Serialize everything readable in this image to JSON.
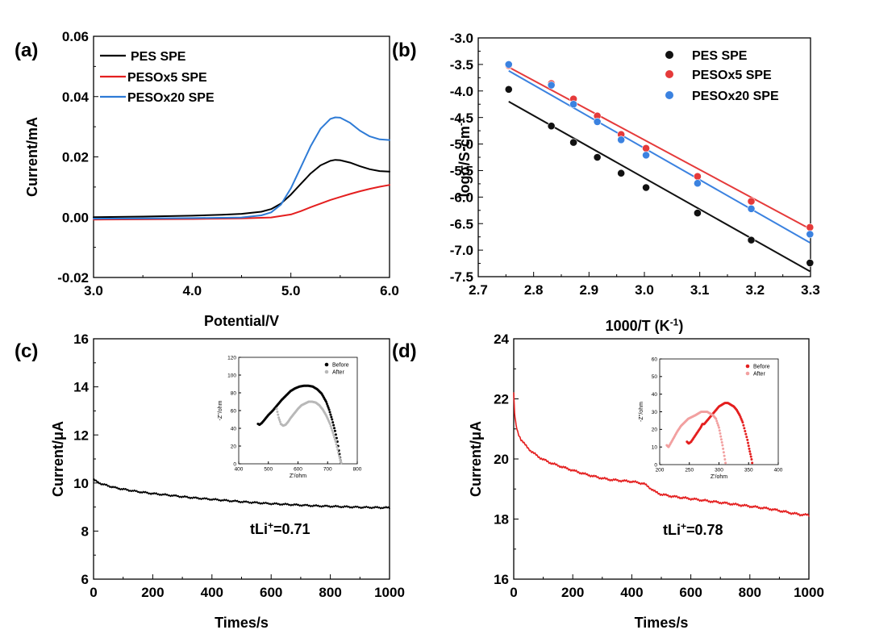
{
  "chart_data": [
    {
      "panel": "(a)",
      "type": "line",
      "xlabel": "Potential/V",
      "ylabel": "Current/mA",
      "xlim": [
        3.0,
        6.0
      ],
      "ylim": [
        -0.02,
        0.06
      ],
      "xticks": [
        "3.0",
        "4.0",
        "5.0",
        "6.0"
      ],
      "yticks": [
        "-0.02",
        "0.00",
        "0.02",
        "0.04",
        "0.06"
      ],
      "legend": "top-left",
      "series": [
        {
          "name": "PES SPE",
          "color": "#000000",
          "x": [
            3.0,
            3.5,
            4.0,
            4.3,
            4.5,
            4.7,
            4.8,
            4.9,
            5.0,
            5.1,
            5.2,
            5.3,
            5.4,
            5.45,
            5.5,
            5.6,
            5.7,
            5.8,
            5.9,
            6.0
          ],
          "y": [
            0.0,
            0.0002,
            0.0005,
            0.0008,
            0.0011,
            0.0018,
            0.0027,
            0.0045,
            0.0075,
            0.011,
            0.0145,
            0.0172,
            0.0187,
            0.019,
            0.0189,
            0.0181,
            0.0169,
            0.0159,
            0.0153,
            0.0151
          ]
        },
        {
          "name": "PESOx5 SPE",
          "color": "#e41f1f",
          "x": [
            3.0,
            3.5,
            4.0,
            4.5,
            4.8,
            5.0,
            5.1,
            5.2,
            5.3,
            5.4,
            5.5,
            5.6,
            5.7,
            5.8,
            5.9,
            6.0
          ],
          "y": [
            -0.0008,
            -0.0007,
            -0.0006,
            -0.0004,
            -0.0001,
            0.0009,
            0.002,
            0.0033,
            0.0045,
            0.0057,
            0.0067,
            0.0077,
            0.0086,
            0.0094,
            0.0101,
            0.0107
          ]
        },
        {
          "name": "PESOx20 SPE",
          "color": "#2e7bd6",
          "x": [
            3.0,
            3.5,
            4.0,
            4.5,
            4.7,
            4.8,
            4.9,
            5.0,
            5.1,
            5.2,
            5.3,
            5.4,
            5.45,
            5.5,
            5.6,
            5.7,
            5.8,
            5.9,
            6.0
          ],
          "y": [
            -0.0005,
            -0.0004,
            -0.0003,
            -0.0001,
            0.0006,
            0.0016,
            0.0042,
            0.0096,
            0.0165,
            0.0235,
            0.0293,
            0.0326,
            0.0331,
            0.033,
            0.0313,
            0.0287,
            0.0268,
            0.0258,
            0.0256
          ]
        }
      ]
    },
    {
      "panel": "(b)",
      "type": "scatter",
      "xlabel": "1000/T (K",
      "xlabel_sup": "-1",
      "xlabel_tail": ")",
      "ylabel": "logσ/S·cm",
      "ylabel_sup": "-1",
      "xlim": [
        2.7,
        3.3
      ],
      "ylim": [
        -7.5,
        -3.0
      ],
      "xticks": [
        "2.7",
        "2.8",
        "2.9",
        "3.0",
        "3.1",
        "3.2",
        "3.3"
      ],
      "yticks": [
        "-3.0",
        "-3.5",
        "-4.0",
        "-4.5",
        "-5.0",
        "-5.5",
        "-6.0",
        "-6.5",
        "-7.0",
        "-7.5"
      ],
      "legend": "top-right",
      "fit_lines": true,
      "series": [
        {
          "name": "PES SPE",
          "color": "#111111",
          "x": [
            2.755,
            2.832,
            2.872,
            2.915,
            2.958,
            3.003,
            3.096,
            3.193,
            3.299
          ],
          "y": [
            -3.97,
            -4.66,
            -4.97,
            -5.25,
            -5.55,
            -5.82,
            -6.3,
            -6.81,
            -7.24
          ],
          "fit": [
            [
              2.755,
              -4.2
            ],
            [
              3.299,
              -7.4
            ]
          ]
        },
        {
          "name": "PESOx5 SPE",
          "color": "#e53a3a",
          "x": [
            2.755,
            2.832,
            2.872,
            2.915,
            2.958,
            3.003,
            3.096,
            3.193,
            3.299
          ],
          "y": [
            -3.52,
            -3.86,
            -4.15,
            -4.47,
            -4.82,
            -5.08,
            -5.61,
            -6.08,
            -6.57
          ],
          "fit": [
            [
              2.755,
              -3.55
            ],
            [
              3.299,
              -6.6
            ]
          ]
        },
        {
          "name": "PESOx20 SPE",
          "color": "#3b82e0",
          "x": [
            2.755,
            2.832,
            2.872,
            2.915,
            2.958,
            3.003,
            3.096,
            3.193,
            3.299
          ],
          "y": [
            -3.5,
            -3.89,
            -4.25,
            -4.58,
            -4.92,
            -5.21,
            -5.74,
            -6.22,
            -6.7
          ],
          "fit": [
            [
              2.755,
              -3.62
            ],
            [
              3.299,
              -6.86
            ]
          ]
        }
      ]
    },
    {
      "panel": "(c)",
      "type": "line",
      "xlabel": "Times/s",
      "ylabel": "Current/μA",
      "xlim": [
        0,
        1000
      ],
      "ylim": [
        6,
        16
      ],
      "xticks": [
        "0",
        "200",
        "400",
        "600",
        "800",
        "1000"
      ],
      "yticks": [
        "6",
        "8",
        "10",
        "12",
        "14",
        "16"
      ],
      "annotation_main": "tLi",
      "annotation_sup": "+",
      "annotation_tail": "=0.71",
      "series": [
        {
          "name": "current",
          "color": "#000000",
          "x": [
            0,
            5,
            15,
            30,
            50,
            75,
            100,
            150,
            200,
            250,
            300,
            350,
            400,
            450,
            500,
            550,
            600,
            650,
            700,
            750,
            800,
            850,
            900,
            950,
            1000
          ],
          "y": [
            10.15,
            10.1,
            10.03,
            9.95,
            9.88,
            9.8,
            9.74,
            9.64,
            9.56,
            9.5,
            9.43,
            9.37,
            9.32,
            9.27,
            9.22,
            9.18,
            9.14,
            9.11,
            9.08,
            9.05,
            9.03,
            9.01,
            8.99,
            8.98,
            8.97
          ]
        }
      ],
      "inset": {
        "xlabel": "Z'/ohm",
        "ylabel": "-Z''/ohm",
        "xlim": [
          400,
          800
        ],
        "ylim": [
          0,
          120
        ],
        "xticks": [
          "400",
          "500",
          "600",
          "700",
          "800"
        ],
        "yticks": [
          "0",
          "20",
          "40",
          "60",
          "80",
          "100",
          "120"
        ],
        "series": [
          {
            "name": "Before",
            "color": "#000000",
            "x": [
              465,
              470,
              478,
              488,
              500,
              515,
              530,
              545,
              560,
              575,
              590,
              605,
              620,
              635,
              650,
              665,
              680,
              695,
              705,
              715,
              725,
              733,
              738,
              742,
              745
            ],
            "y": [
              45,
              44,
              46,
              50,
              55,
              60,
              66,
              72,
              77,
              82,
              85,
              87,
              88,
              88,
              87,
              84,
              79,
              70,
              61,
              50,
              37,
              25,
              15,
              7,
              1
            ]
          },
          {
            "name": "After",
            "color": "#b8b8b8",
            "x": [
              528,
              535,
              542,
              550,
              558,
              566,
              576,
              588,
              600,
              612,
              624,
              636,
              648,
              660,
              672,
              684,
              696,
              708,
              718,
              727,
              734,
              739,
              743,
              746
            ],
            "y": [
              62,
              52,
              45,
              43,
              44,
              47,
              52,
              57,
              62,
              66,
              68,
              70,
              70,
              69,
              66,
              61,
              54,
              45,
              35,
              25,
              16,
              9,
              4,
              1
            ]
          }
        ]
      }
    },
    {
      "panel": "(d)",
      "type": "line",
      "xlabel": "Times/s",
      "ylabel": "Current/μA",
      "xlim": [
        0,
        1000
      ],
      "ylim": [
        16,
        24
      ],
      "xticks": [
        "0",
        "200",
        "400",
        "600",
        "800",
        "1000"
      ],
      "yticks": [
        "16",
        "18",
        "20",
        "22",
        "24"
      ],
      "annotation_main": "tLi",
      "annotation_sup": "+",
      "annotation_tail": "=0.78",
      "series": [
        {
          "name": "current",
          "color": "#e41f1f",
          "x": [
            0,
            3,
            8,
            15,
            25,
            40,
            60,
            80,
            100,
            130,
            160,
            200,
            240,
            280,
            320,
            360,
            400,
            440,
            460,
            480,
            500,
            540,
            580,
            620,
            660,
            700,
            740,
            780,
            820,
            860,
            900,
            940,
            970,
            1000
          ],
          "y": [
            22.2,
            21.5,
            21.1,
            20.85,
            20.65,
            20.45,
            20.25,
            20.1,
            19.98,
            19.85,
            19.75,
            19.62,
            19.5,
            19.4,
            19.32,
            19.28,
            19.25,
            19.18,
            19.05,
            18.9,
            18.82,
            18.75,
            18.7,
            18.65,
            18.6,
            18.55,
            18.5,
            18.45,
            18.4,
            18.35,
            18.28,
            18.2,
            18.15,
            18.13
          ]
        }
      ],
      "inset": {
        "xlabel": "Z'/ohm",
        "ylabel": "-Z''/ohm",
        "xlim": [
          200,
          400
        ],
        "ylim": [
          0,
          60
        ],
        "xticks": [
          "200",
          "250",
          "300",
          "350",
          "400"
        ],
        "yticks": [
          "0",
          "10",
          "20",
          "30",
          "40",
          "50",
          "60"
        ],
        "series": [
          {
            "name": "Before",
            "color": "#e41f1f",
            "x": [
              246,
              249,
              253,
              257,
              261,
              265,
              269,
              272,
              275,
              280,
              285,
              290,
              295,
              300,
              305,
              310,
              315,
              320,
              325,
              330,
              335,
              340,
              344,
              348,
              351,
              353,
              355,
              356
            ],
            "y": [
              13,
              12,
              13,
              15,
              17,
              19,
              21,
              23,
              23,
              25,
              27,
              29,
              31,
              33,
              34,
              35,
              35,
              34,
              33,
              31,
              28,
              24,
              19,
              14,
              9,
              6,
              3,
              1
            ]
          },
          {
            "name": "After",
            "color": "#f2a0a0",
            "x": [
              212,
              215,
              220,
              225,
              230,
              236,
              242,
              248,
              254,
              260,
              265,
              270,
              275,
              280,
              285,
              290,
              295,
              300,
              303,
              306,
              308,
              310,
              311
            ],
            "y": [
              11,
              10,
              13,
              16,
              19,
              22,
              24,
              26,
              27,
              28,
              29,
              30,
              30,
              30,
              29,
              28,
              26,
              21,
              16,
              11,
              7,
              3,
              1
            ]
          }
        ]
      }
    }
  ],
  "panel_labels": [
    "(a)",
    "(b)",
    "(c)",
    "(d)"
  ]
}
